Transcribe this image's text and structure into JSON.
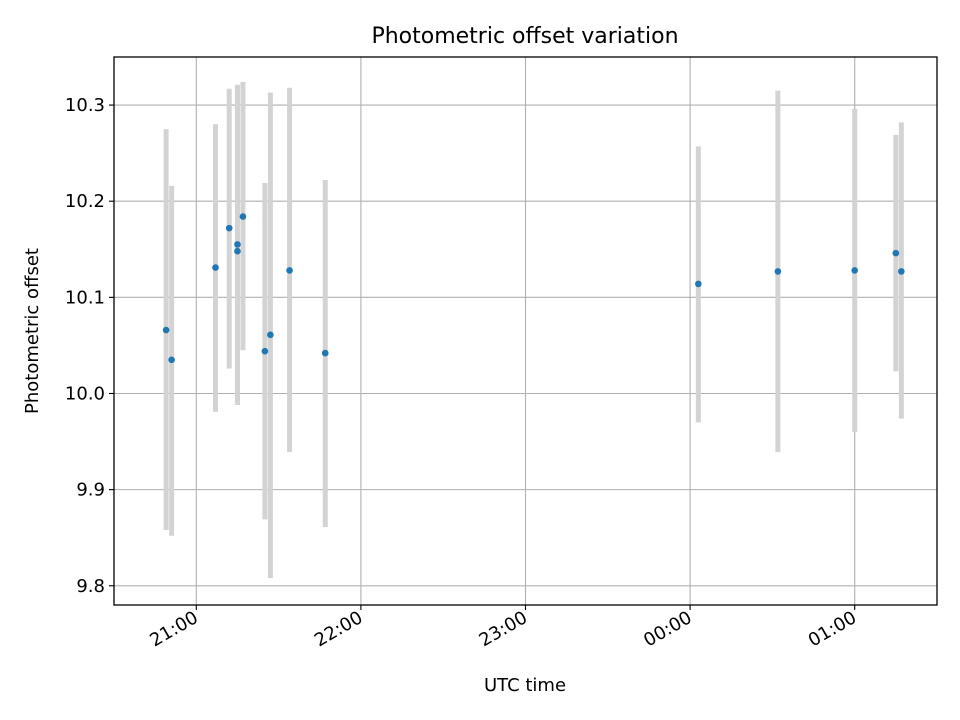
{
  "chart_data": {
    "type": "scatter",
    "title": "Photometric offset variation",
    "xlabel": "UTC time",
    "ylabel": "Photometric offset",
    "x_unit": "UTC time (hh:mm), crossing midnight",
    "xlim": [
      "20:30",
      "01:30"
    ],
    "ylim": [
      9.78,
      10.35
    ],
    "x_ticks": [
      "21:00",
      "22:00",
      "23:00",
      "00:00",
      "01:00"
    ],
    "y_ticks": [
      "9.8",
      "9.9",
      "10.0",
      "10.1",
      "10.2",
      "10.3"
    ],
    "y_tick_values": [
      9.8,
      9.9,
      10.0,
      10.1,
      10.2,
      10.3
    ],
    "grid": true,
    "marker_color": "#1f77b4",
    "errorbar_color": "#d3d3d3",
    "series": [
      {
        "points": [
          {
            "x": "20:49",
            "y": 10.066,
            "ylow": 9.858,
            "yhigh": 10.275
          },
          {
            "x": "20:51",
            "y": 10.035,
            "ylow": 9.852,
            "yhigh": 10.216
          },
          {
            "x": "21:07",
            "y": 10.131,
            "ylow": 9.981,
            "yhigh": 10.28
          },
          {
            "x": "21:12",
            "y": 10.172,
            "ylow": 10.026,
            "yhigh": 10.317
          },
          {
            "x": "21:15",
            "y": 10.155,
            "ylow": 9.988,
            "yhigh": 10.321
          },
          {
            "x": "21:15",
            "y": 10.148,
            "ylow": 9.988,
            "yhigh": 10.321
          },
          {
            "x": "21:17",
            "y": 10.184,
            "ylow": 10.045,
            "yhigh": 10.324
          },
          {
            "x": "21:25",
            "y": 10.044,
            "ylow": 9.869,
            "yhigh": 10.219
          },
          {
            "x": "21:27",
            "y": 10.061,
            "ylow": 9.808,
            "yhigh": 10.313
          },
          {
            "x": "21:34",
            "y": 10.128,
            "ylow": 9.939,
            "yhigh": 10.318
          },
          {
            "x": "21:47",
            "y": 10.042,
            "ylow": 9.861,
            "yhigh": 10.222
          },
          {
            "x": "00:03",
            "y": 10.114,
            "ylow": 9.97,
            "yhigh": 10.257
          },
          {
            "x": "00:32",
            "y": 10.127,
            "ylow": 9.939,
            "yhigh": 10.315
          },
          {
            "x": "01:00",
            "y": 10.128,
            "ylow": 9.96,
            "yhigh": 10.296
          },
          {
            "x": "01:15",
            "y": 10.146,
            "ylow": 10.023,
            "yhigh": 10.269
          },
          {
            "x": "01:17",
            "y": 10.127,
            "ylow": 9.974,
            "yhigh": 10.282
          }
        ]
      }
    ]
  }
}
